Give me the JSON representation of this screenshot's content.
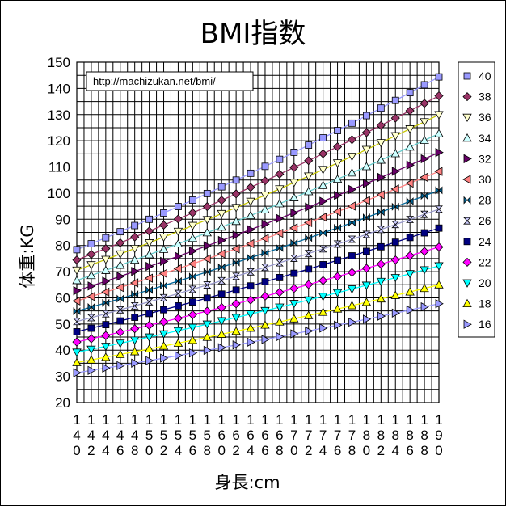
{
  "chart_data": {
    "type": "line",
    "title": "BMI指数",
    "xlabel": "身長:cm",
    "ylabel": "体重:KG",
    "note": "http://machizukan.net/bmi/",
    "x": [
      140,
      142,
      144,
      146,
      148,
      150,
      152,
      154,
      156,
      158,
      160,
      162,
      164,
      166,
      168,
      170,
      172,
      174,
      176,
      178,
      180,
      182,
      184,
      186,
      188,
      190
    ],
    "x_tick_labels": [
      "140",
      "142",
      "144",
      "146",
      "148",
      "150",
      "152",
      "154",
      "156",
      "158",
      "160",
      "162",
      "164",
      "166",
      "168",
      "170",
      "172",
      "174",
      "176",
      "178",
      "180",
      "182",
      "184",
      "186",
      "188",
      "190"
    ],
    "ylim": [
      20,
      150
    ],
    "y_ticks": [
      20,
      30,
      40,
      50,
      60,
      70,
      80,
      90,
      100,
      110,
      120,
      130,
      140,
      150
    ],
    "x_grid_step": 1,
    "grid": true,
    "legend_position": "right",
    "series": [
      {
        "name": "40",
        "bmi": 40,
        "marker": "square",
        "color": "#9999ff",
        "line_color": "#9999ff"
      },
      {
        "name": "38",
        "bmi": 38,
        "marker": "diamond",
        "color": "#993366",
        "line_color": "#993366"
      },
      {
        "name": "36",
        "bmi": 36,
        "marker": "triangle-down",
        "color": "#ffffcc",
        "line_color": "#c8c800"
      },
      {
        "name": "34",
        "bmi": 34,
        "marker": "triangle-up",
        "color": "#ccffff",
        "line_color": "#66cccc"
      },
      {
        "name": "32",
        "bmi": 32,
        "marker": "triangle-right",
        "color": "#660066",
        "line_color": "#660066"
      },
      {
        "name": "30",
        "bmi": 30,
        "marker": "triangle-left",
        "color": "#ff8080",
        "line_color": "#ff8080"
      },
      {
        "name": "28",
        "bmi": 28,
        "marker": "bowtie",
        "color": "#006699",
        "line_color": "#006699"
      },
      {
        "name": "26",
        "bmi": 26,
        "marker": "hourglass",
        "color": "#ccccff",
        "line_color": "#9999cc"
      },
      {
        "name": "24",
        "bmi": 24,
        "marker": "square",
        "color": "#000080",
        "line_color": "#000080"
      },
      {
        "name": "22",
        "bmi": 22,
        "marker": "diamond",
        "color": "#ff00ff",
        "line_color": "#ff00ff"
      },
      {
        "name": "20",
        "bmi": 20,
        "marker": "triangle-down",
        "color": "#00ffff",
        "line_color": "#00ffff"
      },
      {
        "name": "18",
        "bmi": 18,
        "marker": "triangle-up",
        "color": "#ffff00",
        "line_color": "#ffff00"
      },
      {
        "name": "16",
        "bmi": 16,
        "marker": "triangle-right",
        "color": "#9999ff",
        "line_color": "#9999ff"
      }
    ]
  }
}
